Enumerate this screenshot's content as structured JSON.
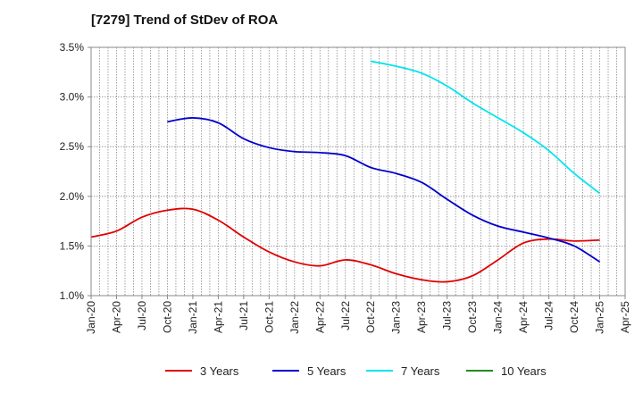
{
  "chart_data": {
    "type": "line",
    "title": "[7279]  Trend of StDev of ROA",
    "xlabel": "",
    "ylabel": "",
    "x_ticks": [
      "Jan-20",
      "Apr-20",
      "Jul-20",
      "Oct-20",
      "Jan-21",
      "Apr-21",
      "Jul-21",
      "Oct-21",
      "Jan-22",
      "Apr-22",
      "Jul-22",
      "Oct-22",
      "Jan-23",
      "Apr-23",
      "Jul-23",
      "Oct-23",
      "Jan-24",
      "Apr-24",
      "Jul-24",
      "Oct-24",
      "Jan-25",
      "Apr-25"
    ],
    "y_ticks": [
      "1.0%",
      "1.5%",
      "2.0%",
      "2.5%",
      "3.0%",
      "3.5%"
    ],
    "ylim": [
      1.0,
      3.5
    ],
    "y_unit": "%",
    "grid": "vertical dotted per month, horizontal dotted per tick",
    "legend_position": "bottom",
    "series": [
      {
        "name": "3 Years",
        "color": "#e00000",
        "values": [
          [
            "Jan-20",
            1.59
          ],
          [
            "Apr-20",
            1.65
          ],
          [
            "Jul-20",
            1.79
          ],
          [
            "Oct-20",
            1.86
          ],
          [
            "Jan-21",
            1.87
          ],
          [
            "Apr-21",
            1.76
          ],
          [
            "Jul-21",
            1.59
          ],
          [
            "Oct-21",
            1.44
          ],
          [
            "Jan-22",
            1.34
          ],
          [
            "Apr-22",
            1.3
          ],
          [
            "Jul-22",
            1.36
          ],
          [
            "Oct-22",
            1.31
          ],
          [
            "Jan-23",
            1.22
          ],
          [
            "Apr-23",
            1.16
          ],
          [
            "Jul-23",
            1.14
          ],
          [
            "Oct-23",
            1.2
          ],
          [
            "Jan-24",
            1.36
          ],
          [
            "Apr-24",
            1.53
          ],
          [
            "Jul-24",
            1.57
          ],
          [
            "Oct-24",
            1.55
          ],
          [
            "Jan-25",
            1.56
          ]
        ]
      },
      {
        "name": "5 Years",
        "color": "#0000cc",
        "values": [
          [
            "Oct-20",
            2.75
          ],
          [
            "Jan-21",
            2.79
          ],
          [
            "Apr-21",
            2.74
          ],
          [
            "Jul-21",
            2.58
          ],
          [
            "Oct-21",
            2.49
          ],
          [
            "Jan-22",
            2.45
          ],
          [
            "Apr-22",
            2.44
          ],
          [
            "Jul-22",
            2.41
          ],
          [
            "Oct-22",
            2.29
          ],
          [
            "Jan-23",
            2.23
          ],
          [
            "Apr-23",
            2.14
          ],
          [
            "Jul-23",
            1.97
          ],
          [
            "Oct-23",
            1.81
          ],
          [
            "Jan-24",
            1.7
          ],
          [
            "Apr-24",
            1.64
          ],
          [
            "Jul-24",
            1.58
          ],
          [
            "Oct-24",
            1.5
          ],
          [
            "Jan-25",
            1.34
          ]
        ]
      },
      {
        "name": "7 Years",
        "color": "#00e5ee",
        "values": [
          [
            "Oct-22",
            3.36
          ],
          [
            "Jan-23",
            3.31
          ],
          [
            "Apr-23",
            3.24
          ],
          [
            "Jul-23",
            3.11
          ],
          [
            "Oct-23",
            2.94
          ],
          [
            "Jan-24",
            2.79
          ],
          [
            "Apr-24",
            2.64
          ],
          [
            "Jul-24",
            2.46
          ],
          [
            "Oct-24",
            2.23
          ],
          [
            "Jan-25",
            2.03
          ]
        ]
      },
      {
        "name": "10 Years",
        "color": "#228b22",
        "values": []
      }
    ]
  }
}
